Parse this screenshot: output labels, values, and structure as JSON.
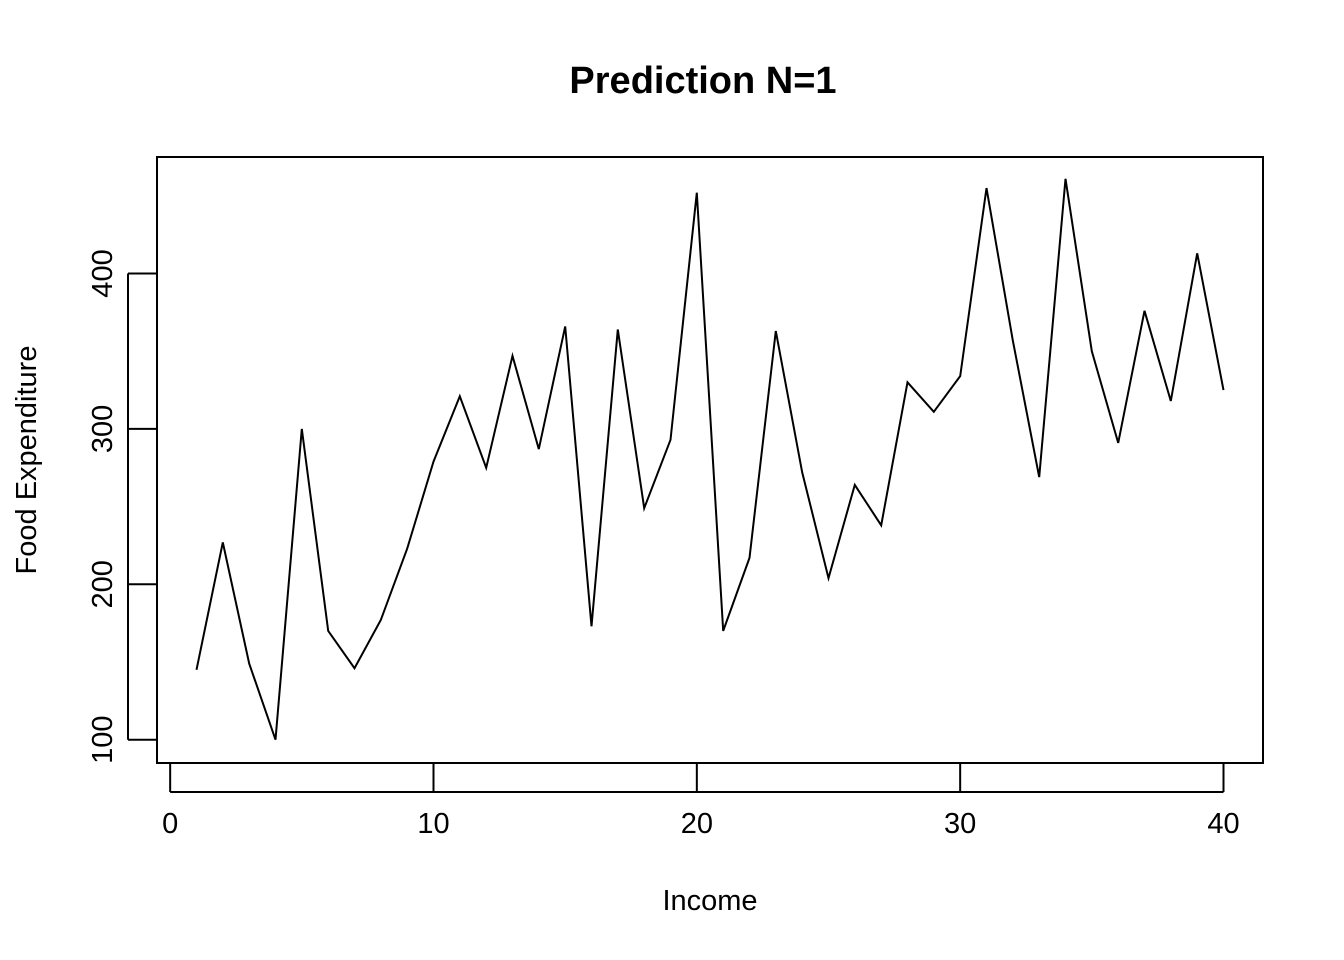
{
  "chart_data": {
    "type": "line",
    "title": "Prediction N=1",
    "xlabel": "Income",
    "ylabel": "Food Expenditure",
    "xlim": [
      -0.5,
      41.5
    ],
    "ylim": [
      85,
      475
    ],
    "x_ticks": [
      0,
      10,
      20,
      30,
      40
    ],
    "y_ticks": [
      100,
      200,
      300,
      400
    ],
    "grid": false,
    "legend": "none",
    "line_color": "#000000",
    "series": [
      {
        "x": [
          1,
          2,
          3,
          4,
          5,
          6,
          7,
          8,
          9,
          10,
          11,
          12,
          13,
          14,
          15,
          16,
          17,
          18,
          19,
          20,
          21,
          22,
          23,
          24,
          25,
          26,
          27,
          28,
          29,
          30,
          31,
          32,
          33,
          34,
          35,
          36,
          37,
          38,
          39,
          40
        ],
        "values": [
          145,
          227,
          149,
          100,
          300,
          170,
          146,
          177,
          223,
          279,
          321,
          275,
          347,
          287,
          366,
          173,
          364,
          249,
          293,
          452,
          170,
          217,
          363,
          272,
          204,
          264,
          238,
          330,
          311,
          334,
          455,
          357,
          269,
          461,
          350,
          291,
          376,
          318,
          413,
          325
        ]
      }
    ]
  }
}
